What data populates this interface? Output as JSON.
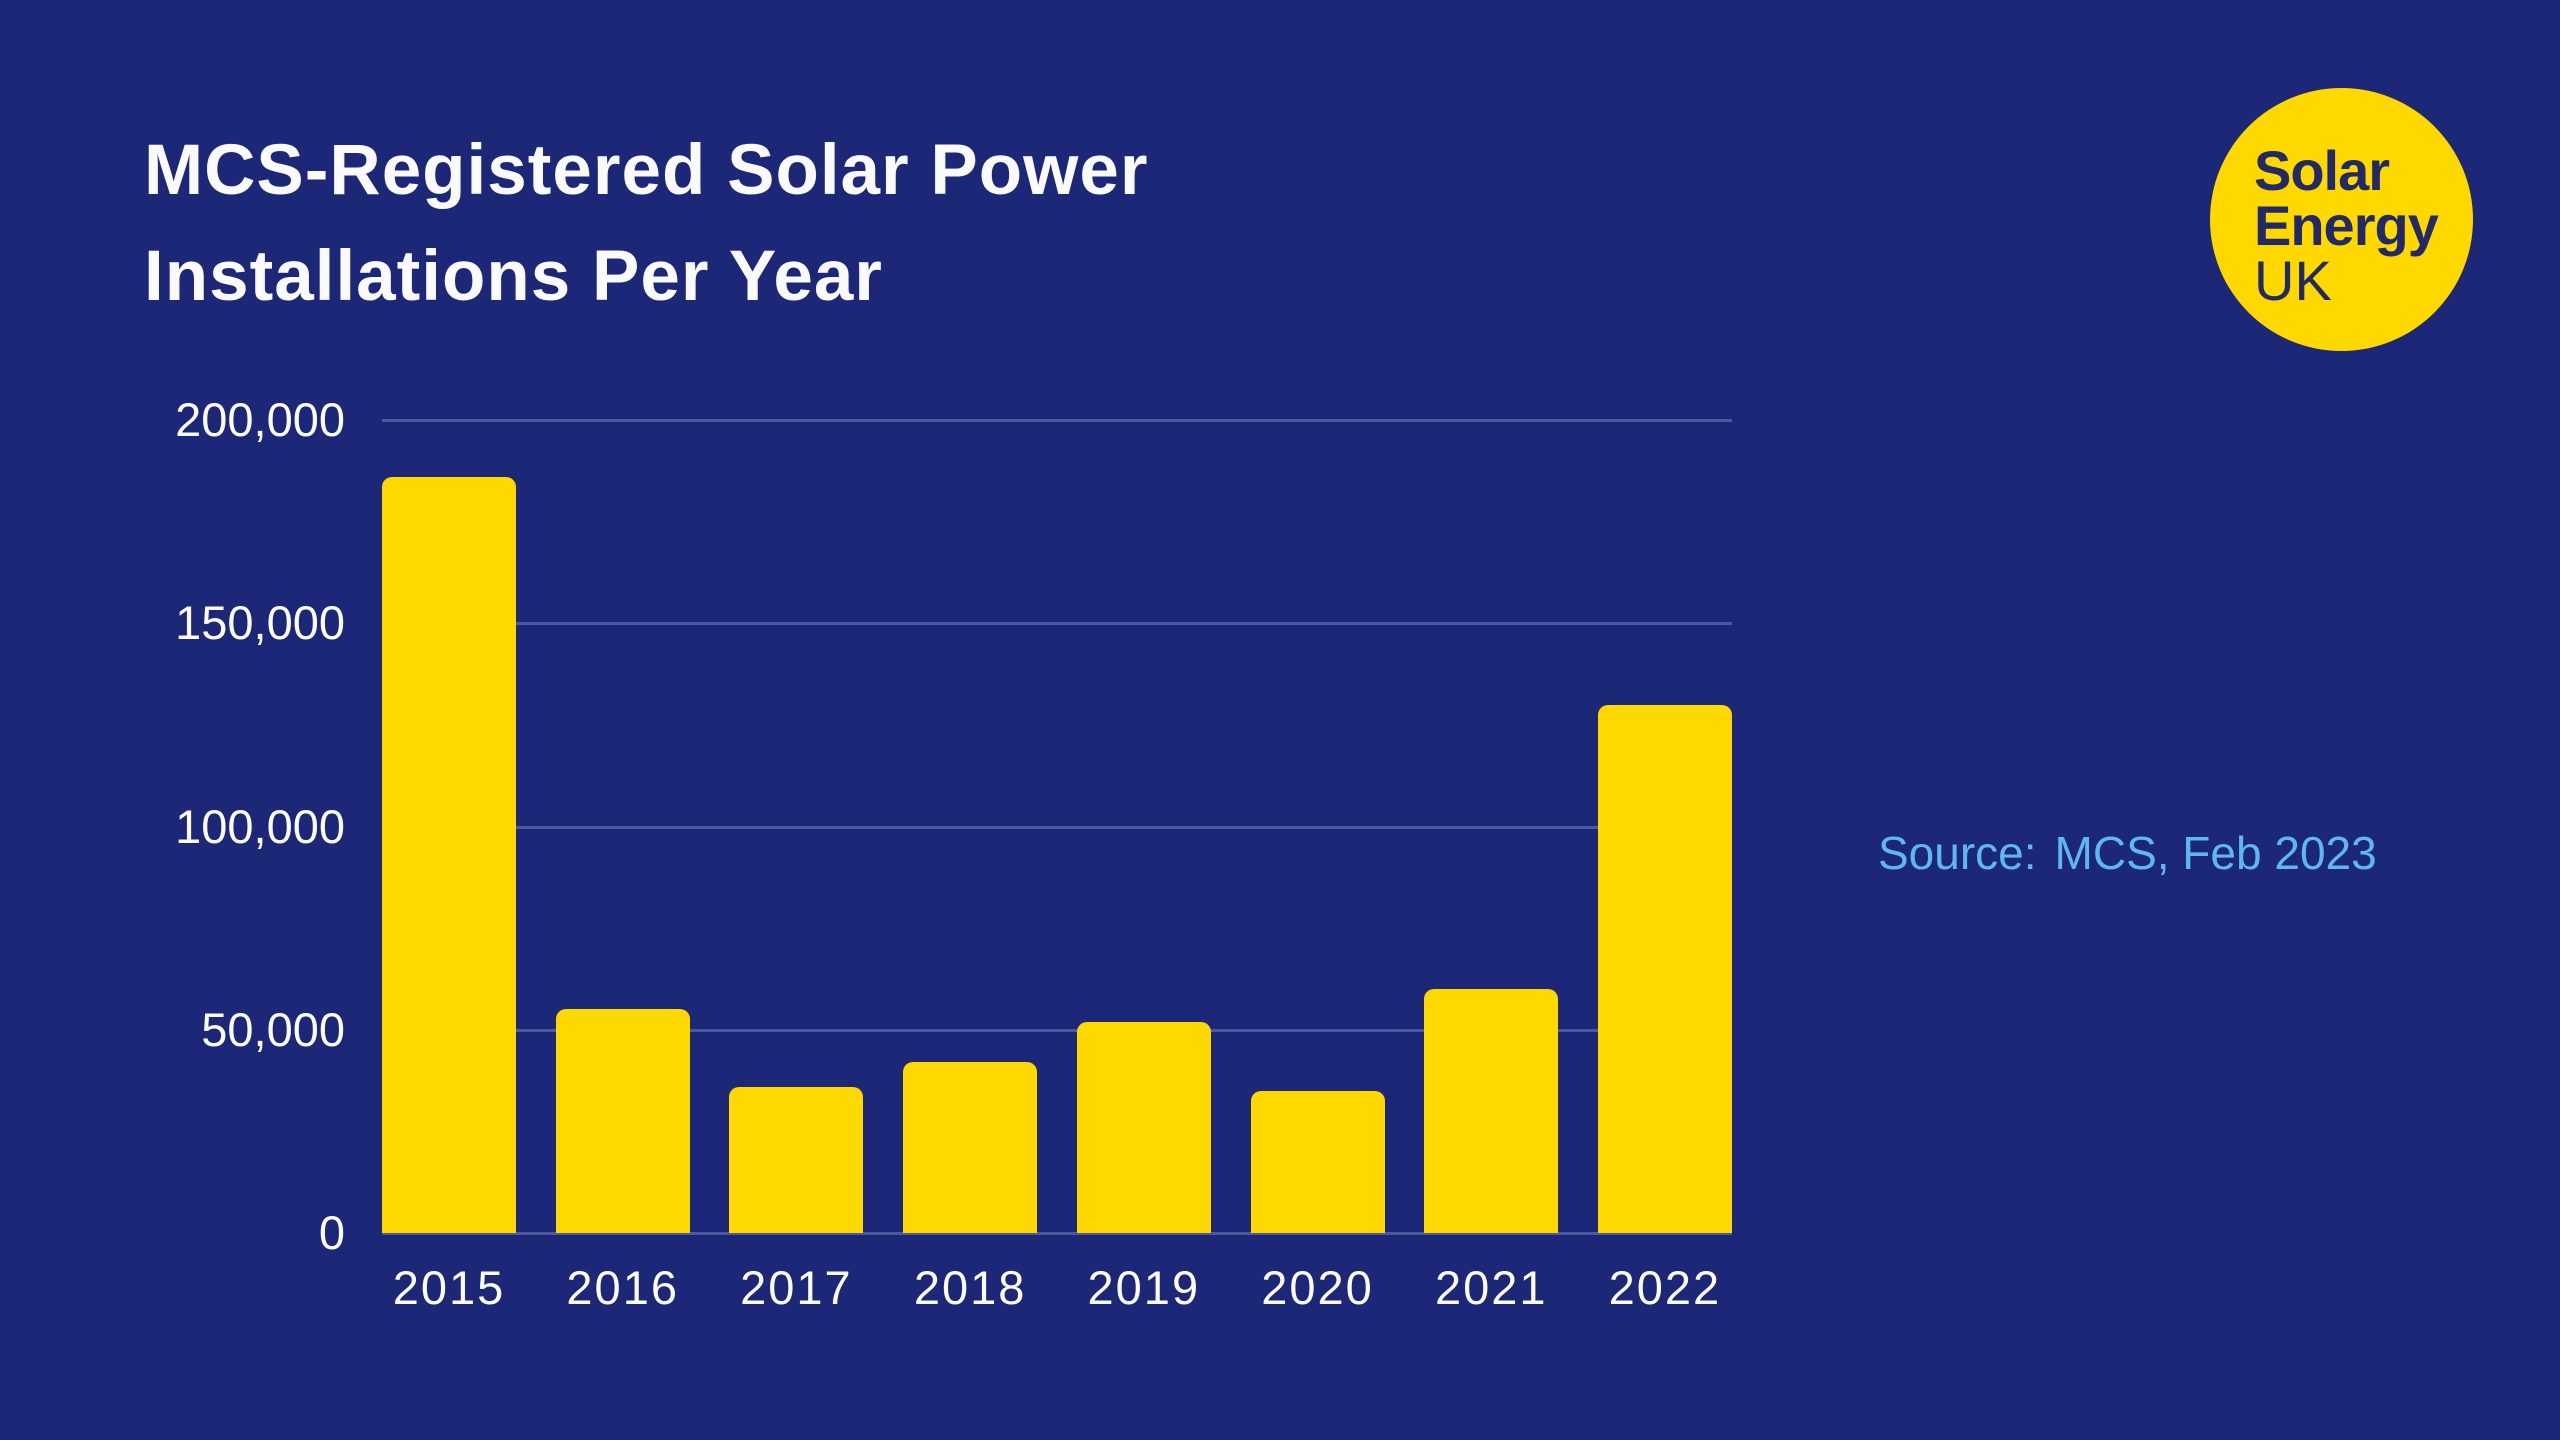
{
  "page": {
    "background_color": "#1D2777"
  },
  "title": {
    "line1": "MCS-Registered Solar Power",
    "line2": "Installations Per Year"
  },
  "logo": {
    "line1": "Solar",
    "line2": "Energy",
    "line3": "UK",
    "circle_color": "#FFD800",
    "text_color": "#222968"
  },
  "source": {
    "prefix": "Source:",
    "value": "MCS, Feb 2023",
    "color": "#5EB7EF"
  },
  "chart_data": {
    "type": "bar",
    "title": "MCS-Registered Solar Power Installations Per Year",
    "categories": [
      "2015",
      "2016",
      "2017",
      "2018",
      "2019",
      "2020",
      "2021",
      "2022"
    ],
    "values": [
      186000,
      55000,
      36000,
      42000,
      52000,
      35000,
      60000,
      130000
    ],
    "y_ticks": [
      {
        "label": "200,000",
        "value": 200000
      },
      {
        "label": "150,000",
        "value": 150000
      },
      {
        "label": "100,000",
        "value": 100000
      },
      {
        "label": "50,000",
        "value": 50000
      },
      {
        "label": "0",
        "value": 0
      }
    ],
    "ylim": [
      0,
      200000
    ],
    "xlabel": "",
    "ylabel": "",
    "grid": true,
    "legend": false,
    "bar_color": "#FFD800",
    "gridline_color": "#4D589E",
    "axis_text_color": "#FCFCFE"
  }
}
